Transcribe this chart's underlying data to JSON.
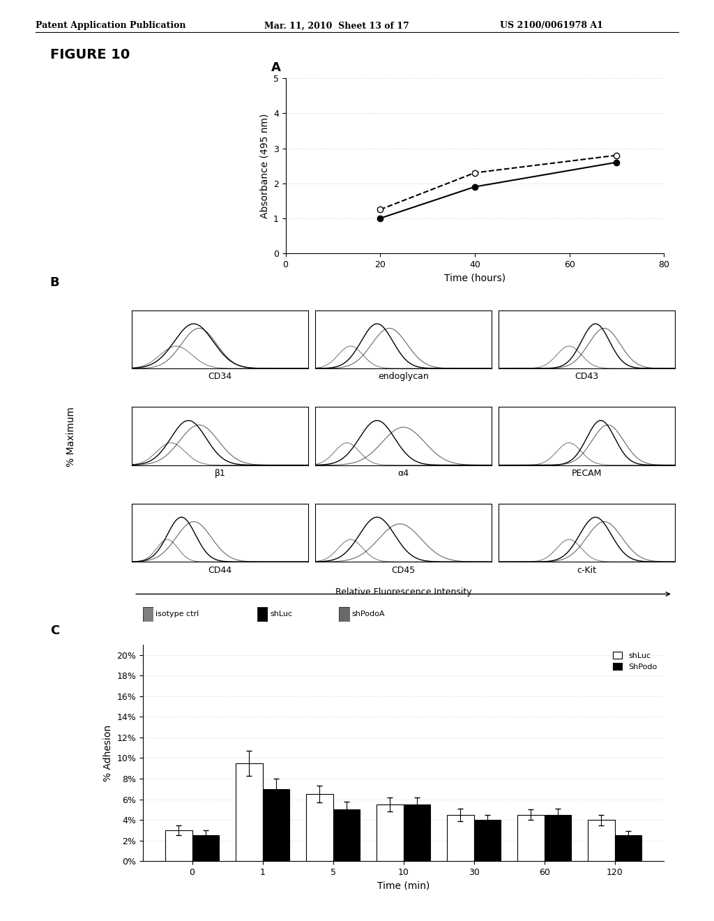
{
  "header_left": "Patent Application Publication",
  "header_mid": "Mar. 11, 2010  Sheet 13 of 17",
  "header_right": "US 2100/0061978 A1",
  "figure_label": "FIGURE 10",
  "panel_A_label": "A",
  "panel_B_label": "B",
  "panel_C_label": "C",
  "panelA": {
    "xlabel": "Time (hours)",
    "ylabel": "Absorbance (495 nm)",
    "xlim": [
      0,
      80
    ],
    "ylim": [
      0,
      5
    ],
    "xticks": [
      0,
      20,
      40,
      60,
      80
    ],
    "yticks": [
      0,
      1,
      2,
      3,
      4,
      5
    ],
    "line1_x": [
      20,
      40,
      70
    ],
    "line1_y": [
      1.0,
      1.9,
      2.6
    ],
    "line2_x": [
      20,
      40,
      70
    ],
    "line2_y": [
      1.25,
      2.3,
      2.8
    ]
  },
  "panelB": {
    "grid_labels": [
      "CD34",
      "endoglycan",
      "CD43",
      "β1",
      "α4",
      "PECAM",
      "CD44",
      "CD45",
      "c-Kit"
    ],
    "xlabel": "Relative Fluorescence Intensity",
    "ylabel": "% Maximum",
    "legend": [
      "isotype ctrl",
      "shLuc",
      "shPodoA"
    ]
  },
  "panelC": {
    "xlabel": "Time (min)",
    "ylabel": "% Adhesion",
    "xlim_cats": [
      0,
      1,
      5,
      10,
      30,
      60,
      120
    ],
    "shLuc_vals": [
      3.0,
      9.5,
      6.5,
      5.5,
      4.5,
      4.5,
      4.0
    ],
    "shLuc_err": [
      0.5,
      1.2,
      0.8,
      0.7,
      0.6,
      0.5,
      0.5
    ],
    "shPodo_vals": [
      2.5,
      7.0,
      5.0,
      5.5,
      4.0,
      4.5,
      2.5
    ],
    "shPodo_err": [
      0.5,
      1.0,
      0.8,
      0.7,
      0.5,
      0.6,
      0.4
    ],
    "yticks": [
      0,
      2,
      4,
      6,
      8,
      10,
      12,
      14,
      16,
      18,
      20
    ],
    "ylim": [
      0,
      21
    ],
    "legend": [
      "shLuc",
      "ShPodo"
    ]
  }
}
